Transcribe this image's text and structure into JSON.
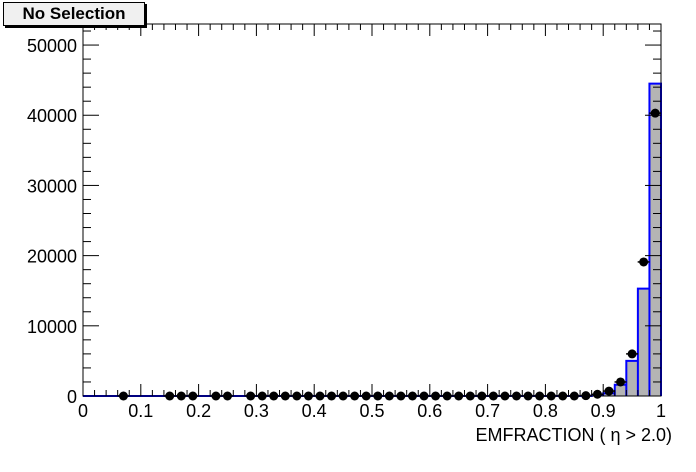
{
  "chart_data": {
    "type": "bar",
    "title": "No Selection",
    "xlabel": "EMFRACTION ( η > 2.0)",
    "ylabel": "",
    "xlim": [
      0,
      1
    ],
    "ylim": [
      0,
      53000
    ],
    "grid": false,
    "x_ticks": [
      "0",
      "0.1",
      "0.2",
      "0.3",
      "0.4",
      "0.5",
      "0.6",
      "0.7",
      "0.8",
      "0.9",
      "1"
    ],
    "y_ticks": [
      "0",
      "10000",
      "20000",
      "30000",
      "40000",
      "50000"
    ],
    "bin_width": 0.02,
    "colors": {
      "hist_fill": "#b4b4b4",
      "hist_line": "#0000ff",
      "points": "#000000"
    },
    "series": [
      {
        "kind": "histogram",
        "x": [
          0.89,
          0.91,
          0.93,
          0.95,
          0.97,
          0.99
        ],
        "values": [
          100,
          400,
          1600,
          5000,
          15300,
          44500
        ]
      },
      {
        "kind": "points",
        "x": [
          0.07,
          0.15,
          0.17,
          0.19,
          0.23,
          0.25,
          0.29,
          0.31,
          0.33,
          0.35,
          0.37,
          0.39,
          0.41,
          0.43,
          0.45,
          0.47,
          0.49,
          0.51,
          0.53,
          0.55,
          0.57,
          0.59,
          0.61,
          0.63,
          0.65,
          0.67,
          0.69,
          0.71,
          0.73,
          0.75,
          0.77,
          0.79,
          0.81,
          0.83,
          0.85,
          0.87,
          0.89,
          0.91,
          0.93,
          0.95,
          0.97,
          0.99
        ],
        "values": [
          0,
          0,
          0,
          0,
          0,
          0,
          0,
          0,
          0,
          0,
          0,
          0,
          0,
          0,
          0,
          0,
          0,
          0,
          0,
          0,
          0,
          0,
          0,
          0,
          0,
          0,
          0,
          0,
          0,
          0,
          0,
          0,
          0,
          0,
          0,
          50,
          250,
          700,
          2000,
          6000,
          19100,
          40300
        ]
      }
    ]
  }
}
